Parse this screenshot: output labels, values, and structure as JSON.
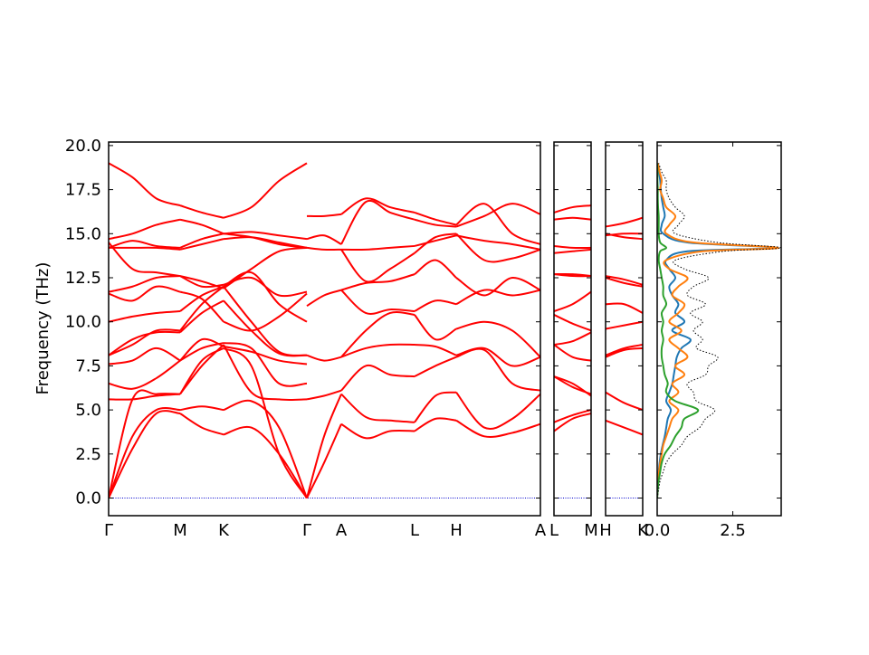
{
  "chart_data": {
    "type": "line",
    "ylabel": "Frequency (THz)",
    "xlabel": "",
    "title": "",
    "ylim": [
      -1.0,
      20.2
    ],
    "y_ticks": [
      "0.0",
      "2.5",
      "5.0",
      "7.5",
      "10.0",
      "12.5",
      "15.0",
      "17.5",
      "20.0"
    ],
    "band_color": "#ff0000",
    "zero_line_color": "#0000cd",
    "panels": [
      {
        "id": "path1",
        "labels": [
          "Γ",
          "M",
          "K",
          "Γ",
          "A",
          "L",
          "H",
          "A"
        ],
        "segments": [
          {
            "from": "Γ",
            "to": "M",
            "bands": [
              [
                0.0,
                2.8,
                4.8,
                4.8
              ],
              [
                0.0,
                3.5,
                5.0,
                5.0
              ],
              [
                0.0,
                5.6,
                5.9,
                5.9
              ],
              [
                5.6,
                5.6,
                5.8,
                5.9
              ],
              [
                6.5,
                6.2,
                6.8,
                7.8
              ],
              [
                7.6,
                7.8,
                8.5,
                7.8
              ],
              [
                8.1,
                9.0,
                9.4,
                9.4
              ],
              [
                8.1,
                8.7,
                9.5,
                9.5
              ],
              [
                10.0,
                10.3,
                10.5,
                10.6
              ],
              [
                11.6,
                11.2,
                12.0,
                11.7
              ],
              [
                11.7,
                12.0,
                12.5,
                12.6
              ],
              [
                14.5,
                13.0,
                12.8,
                12.6
              ],
              [
                14.2,
                14.2,
                14.2,
                14.1
              ],
              [
                14.2,
                14.6,
                14.3,
                14.2
              ],
              [
                14.7,
                15.0,
                15.5,
                15.8
              ],
              [
                19.0,
                18.2,
                17.0,
                16.6
              ]
            ]
          },
          {
            "from": "M",
            "to": "K",
            "bands": [
              [
                4.8,
                4.0,
                3.6
              ],
              [
                5.0,
                5.2,
                5.0
              ],
              [
                5.9,
                7.8,
                8.5
              ],
              [
                5.9,
                7.5,
                8.7
              ],
              [
                7.8,
                8.5,
                8.8
              ],
              [
                7.8,
                9.0,
                8.6
              ],
              [
                9.4,
                10.5,
                11.2
              ],
              [
                9.5,
                11.0,
                12.0
              ],
              [
                10.6,
                11.5,
                12.0
              ],
              [
                11.7,
                11.3,
                10.0
              ],
              [
                12.6,
                12.3,
                11.9
              ],
              [
                12.6,
                12.0,
                12.1
              ],
              [
                14.1,
                14.4,
                14.7
              ],
              [
                14.2,
                14.7,
                15.0
              ],
              [
                15.8,
                15.5,
                15.0
              ],
              [
                16.6,
                16.2,
                15.9
              ]
            ]
          },
          {
            "from": "K",
            "to": "Γ",
            "bands": [
              [
                3.6,
                4.0,
                2.5,
                0.0
              ],
              [
                5.0,
                5.5,
                4.0,
                0.0
              ],
              [
                8.5,
                7.5,
                2.5,
                0.0
              ],
              [
                8.7,
                6.0,
                5.6,
                5.6
              ],
              [
                8.8,
                8.5,
                6.5,
                6.5
              ],
              [
                8.6,
                8.3,
                7.8,
                7.6
              ],
              [
                11.2,
                9.5,
                8.2,
                8.1
              ],
              [
                12.0,
                10.0,
                8.3,
                8.1
              ],
              [
                12.0,
                12.8,
                11.0,
                10.0
              ],
              [
                10.0,
                9.5,
                10.3,
                11.6
              ],
              [
                11.9,
                13.0,
                14.0,
                14.2
              ],
              [
                12.1,
                12.5,
                11.5,
                11.7
              ],
              [
                14.7,
                14.8,
                14.5,
                14.2
              ],
              [
                15.0,
                14.8,
                14.4,
                14.2
              ],
              [
                15.0,
                15.1,
                14.9,
                14.7
              ],
              [
                15.9,
                16.5,
                18.0,
                19.0
              ]
            ]
          },
          {
            "from": "Γ",
            "to": "A",
            "bands": [
              [
                0.0,
                2.0,
                4.2
              ],
              [
                0.0,
                3.5,
                5.9
              ],
              [
                5.6,
                5.8,
                6.1
              ],
              [
                8.1,
                7.8,
                8.0
              ],
              [
                10.9,
                11.5,
                11.8
              ],
              [
                14.2,
                14.1,
                14.1
              ],
              [
                14.7,
                14.9,
                14.4
              ],
              [
                16.0,
                16.0,
                16.1
              ]
            ]
          },
          {
            "from": "A",
            "to": "L",
            "bands": [
              [
                4.2,
                3.4,
                3.8,
                3.8
              ],
              [
                5.9,
                4.6,
                4.4,
                4.3
              ],
              [
                6.1,
                7.5,
                7.0,
                6.9
              ],
              [
                8.0,
                8.5,
                8.7,
                8.7
              ],
              [
                8.0,
                9.5,
                10.5,
                10.4
              ],
              [
                11.8,
                10.5,
                10.7,
                10.6
              ],
              [
                11.8,
                12.2,
                12.3,
                12.7
              ],
              [
                14.1,
                12.3,
                13.0,
                13.9
              ],
              [
                14.4,
                16.8,
                16.2,
                15.8
              ],
              [
                16.1,
                17.0,
                16.5,
                16.2
              ],
              [
                14.1,
                14.1,
                14.2,
                14.3
              ]
            ]
          },
          {
            "from": "L",
            "to": "H",
            "bands": [
              [
                3.8,
                4.5,
                4.4
              ],
              [
                4.3,
                5.8,
                6.0
              ],
              [
                6.9,
                7.5,
                8.0
              ],
              [
                8.7,
                8.6,
                8.1
              ],
              [
                10.4,
                9.0,
                9.6
              ],
              [
                10.6,
                11.2,
                11.0
              ],
              [
                12.7,
                13.5,
                12.5
              ],
              [
                13.9,
                14.8,
                15.0
              ],
              [
                15.8,
                15.5,
                15.4
              ],
              [
                16.2,
                15.8,
                15.5
              ],
              [
                14.3,
                14.6,
                14.9
              ]
            ]
          },
          {
            "from": "H",
            "to": "A",
            "bands": [
              [
                4.4,
                3.5,
                3.7,
                4.2
              ],
              [
                6.0,
                4.0,
                4.5,
                5.9
              ],
              [
                8.0,
                8.4,
                6.5,
                6.1
              ],
              [
                8.1,
                8.5,
                7.5,
                8.0
              ],
              [
                9.6,
                10.0,
                9.5,
                8.0
              ],
              [
                11.0,
                11.8,
                11.5,
                11.8
              ],
              [
                12.5,
                11.5,
                12.5,
                11.8
              ],
              [
                15.0,
                13.5,
                13.6,
                14.1
              ],
              [
                15.4,
                16.0,
                16.7,
                16.1
              ],
              [
                15.5,
                16.7,
                15.0,
                14.4
              ],
              [
                14.9,
                14.6,
                14.4,
                14.1
              ]
            ]
          }
        ]
      },
      {
        "id": "path2",
        "labels": [
          "L",
          "M"
        ],
        "segments": [
          {
            "from": "L",
            "to": "M",
            "bands": [
              [
                3.8,
                4.5,
                4.8
              ],
              [
                4.3,
                4.7,
                5.0
              ],
              [
                6.9,
                6.5,
                5.8
              ],
              [
                6.9,
                6.3,
                5.9
              ],
              [
                8.7,
                8.0,
                7.8
              ],
              [
                8.7,
                8.9,
                9.4
              ],
              [
                10.4,
                9.9,
                9.5
              ],
              [
                10.6,
                11.0,
                11.7
              ],
              [
                12.7,
                12.7,
                12.6
              ],
              [
                12.7,
                12.6,
                12.6
              ],
              [
                13.9,
                14.0,
                14.1
              ],
              [
                14.3,
                14.2,
                14.2
              ],
              [
                15.8,
                15.9,
                15.8
              ],
              [
                16.2,
                16.5,
                16.6
              ]
            ]
          }
        ]
      },
      {
        "id": "path3",
        "labels": [
          "H",
          "K"
        ],
        "segments": [
          {
            "from": "H",
            "to": "K",
            "bands": [
              [
                4.4,
                4.0,
                3.6
              ],
              [
                6.0,
                5.4,
                5.0
              ],
              [
                8.0,
                8.4,
                8.5
              ],
              [
                8.1,
                8.5,
                8.7
              ],
              [
                9.6,
                9.8,
                10.0
              ],
              [
                11.0,
                11.0,
                10.5
              ],
              [
                12.5,
                12.2,
                12.0
              ],
              [
                12.6,
                12.4,
                12.1
              ],
              [
                15.0,
                14.8,
                14.7
              ],
              [
                15.4,
                15.6,
                15.9
              ],
              [
                14.9,
                15.0,
                15.0
              ]
            ]
          }
        ]
      }
    ],
    "dos": {
      "xlim": [
        0.0,
        4.1
      ],
      "x_ticks": [
        "0.0",
        "2.5"
      ],
      "freq": [
        0,
        0.5,
        1,
        1.5,
        2,
        2.5,
        3,
        3.5,
        4,
        4.5,
        5,
        5.5,
        6,
        6.5,
        7,
        7.5,
        8,
        8.5,
        9,
        9.5,
        10,
        10.5,
        11,
        11.5,
        12,
        12.5,
        13,
        13.5,
        14,
        14.2,
        14.5,
        15,
        15.5,
        16,
        16.5,
        17,
        17.5,
        18,
        18.5,
        19
      ],
      "series": [
        {
          "color": "#1f77b4",
          "style": "solid",
          "values": [
            0,
            0.01,
            0.02,
            0.05,
            0.08,
            0.12,
            0.18,
            0.25,
            0.3,
            0.35,
            0.45,
            0.3,
            0.4,
            0.5,
            0.55,
            0.6,
            0.65,
            0.8,
            1.1,
            0.5,
            0.9,
            0.6,
            0.7,
            0.5,
            0.4,
            0.6,
            0.4,
            0.3,
            1.0,
            3.9,
            1.0,
            0.2,
            0.15,
            0.25,
            0.2,
            0.15,
            0.12,
            0.1,
            0.06,
            0.02
          ]
        },
        {
          "color": "#ff7f0e",
          "style": "solid",
          "values": [
            0,
            0.01,
            0.03,
            0.06,
            0.1,
            0.15,
            0.2,
            0.3,
            0.4,
            0.5,
            0.7,
            0.4,
            0.7,
            0.5,
            0.9,
            0.6,
            1.0,
            0.7,
            0.4,
            0.8,
            0.4,
            0.7,
            0.9,
            0.5,
            0.7,
            1.0,
            0.4,
            0.3,
            1.5,
            4.0,
            1.2,
            0.3,
            0.4,
            0.6,
            0.3,
            0.2,
            0.1,
            0.15,
            0.08,
            0.02
          ]
        },
        {
          "color": "#2ca02c",
          "style": "solid",
          "values": [
            0,
            0.02,
            0.05,
            0.1,
            0.15,
            0.25,
            0.45,
            0.6,
            0.8,
            0.9,
            1.35,
            0.6,
            0.3,
            0.35,
            0.25,
            0.2,
            0.15,
            0.15,
            0.2,
            0.15,
            0.2,
            0.15,
            0.3,
            0.2,
            0.2,
            0.15,
            0.1,
            0.05,
            0.1,
            0.3,
            0.1,
            0.05,
            0.05,
            0.05,
            0.03,
            0.02,
            0.02,
            0.01,
            0.01,
            0.0
          ]
        },
        {
          "color": "#000000",
          "style": "dotted",
          "values": [
            0,
            0.05,
            0.1,
            0.2,
            0.3,
            0.5,
            0.8,
            1.0,
            1.4,
            1.6,
            1.9,
            1.3,
            1.2,
            1.0,
            1.6,
            1.7,
            2.0,
            1.3,
            1.5,
            1.2,
            1.5,
            1.1,
            1.6,
            1.0,
            1.2,
            1.7,
            0.9,
            0.6,
            2.2,
            4.1,
            2.0,
            0.6,
            0.7,
            0.9,
            0.6,
            0.4,
            0.3,
            0.3,
            0.15,
            0.05
          ]
        }
      ]
    }
  }
}
